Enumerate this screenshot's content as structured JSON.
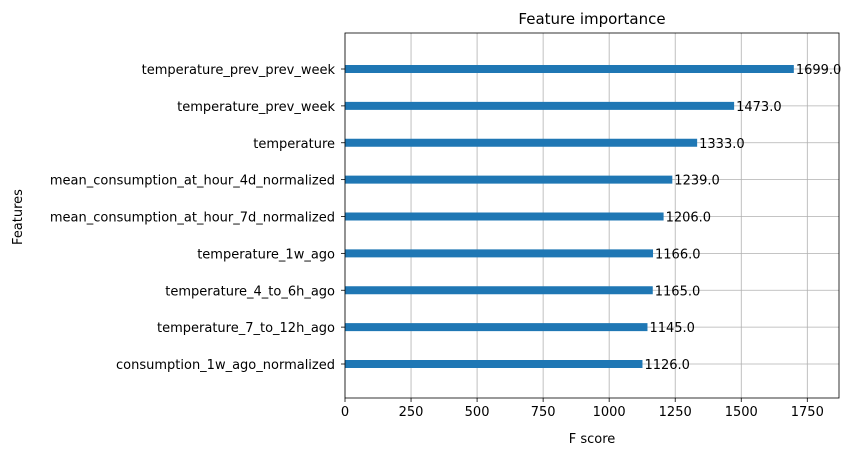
{
  "chart_data": {
    "type": "bar",
    "orientation": "horizontal",
    "title": "Feature importance",
    "xlabel": "F score",
    "ylabel": "Features",
    "categories": [
      "temperature_prev_prev_week",
      "temperature_prev_week",
      "temperature",
      "mean_consumption_at_hour_4d_normalized",
      "mean_consumption_at_hour_7d_normalized",
      "temperature_1w_ago",
      "temperature_4_to_6h_ago",
      "temperature_7_to_12h_ago",
      "consumption_1w_ago_normalized"
    ],
    "values": [
      1699.0,
      1473.0,
      1333.0,
      1239.0,
      1206.0,
      1166.0,
      1165.0,
      1145.0,
      1126.0
    ],
    "value_labels": [
      "1699.0",
      "1473.0",
      "1333.0",
      "1239.0",
      "1206.0",
      "1166.0",
      "1165.0",
      "1145.0",
      "1126.0"
    ],
    "xlim": [
      0,
      1870
    ],
    "xticks": [
      0,
      250,
      500,
      750,
      1000,
      1250,
      1500,
      1750
    ],
    "xtick_labels": [
      "0",
      "250",
      "500",
      "750",
      "1000",
      "1250",
      "1500",
      "1750"
    ],
    "grid": true,
    "bar_color": "#1f77b4"
  }
}
